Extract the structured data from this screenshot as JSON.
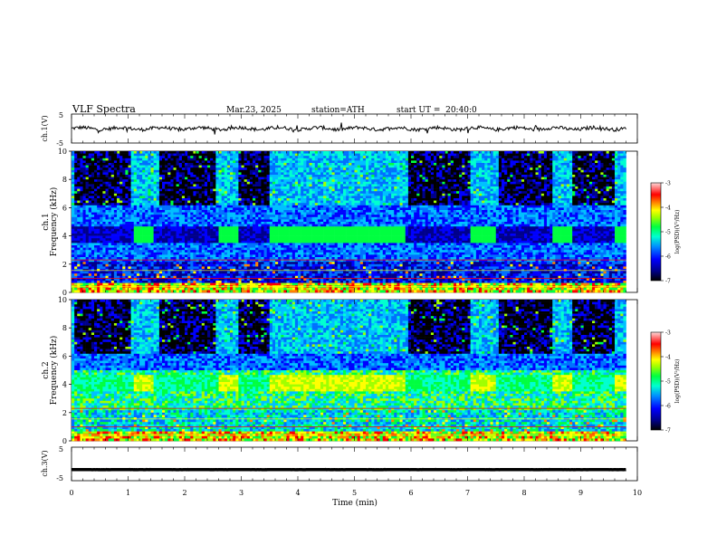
{
  "header": {
    "title": "VLF Spectra",
    "date": "Mar.23, 2025",
    "station": "station=ATH",
    "start": "start UT =  20:40:0"
  },
  "colorbar_label": "log(PSD)(V²/Hz)",
  "colorbar_ticks": [
    "-3",
    "-4",
    "-5",
    "-6",
    "-7"
  ],
  "palette": [
    "#000000",
    "#00008b",
    "#0000ff",
    "#0070ff",
    "#00c0ff",
    "#00ffd0",
    "#00ff40",
    "#a0ff00",
    "#ffff00",
    "#ff8000",
    "#ff0000",
    "#ffc0c0"
  ],
  "chart_data": [
    {
      "type": "line",
      "name": "ch.1 waveform",
      "ylabel": "ch.1(V)",
      "ylim": [
        -5,
        5
      ],
      "yticks": [
        "5",
        "-5"
      ],
      "xlim": [
        0,
        10
      ],
      "mean_level": 0,
      "approx_range": [
        -1.5,
        1.2
      ]
    },
    {
      "type": "heatmap",
      "name": "ch.1 spectrogram",
      "channel_label": "ch.1",
      "ylabel": "Frequency (kHz)",
      "ylim": [
        0,
        10
      ],
      "yticks": [
        "0",
        "2",
        "4",
        "6",
        "8",
        "10"
      ],
      "xlim": [
        0,
        10
      ],
      "zlabel": "log(PSD)(V²/Hz)",
      "zlim": [
        -7,
        -3
      ],
      "dark_intervals_min": [
        [
          0.05,
          1.05
        ],
        [
          1.55,
          2.55
        ],
        [
          2.95,
          3.5
        ],
        [
          5.95,
          7.05
        ],
        [
          7.55,
          8.5
        ],
        [
          8.85,
          9.6
        ]
      ],
      "band_4khz_bright_min": [
        [
          1.1,
          1.45
        ],
        [
          2.6,
          2.95
        ],
        [
          3.5,
          5.9
        ],
        [
          7.05,
          7.5
        ],
        [
          8.5,
          8.85
        ],
        [
          9.6,
          9.8
        ]
      ]
    },
    {
      "type": "heatmap",
      "name": "ch.2 spectrogram",
      "channel_label": "ch.2",
      "ylabel": "Frequency (kHz)",
      "ylim": [
        0,
        10
      ],
      "yticks": [
        "0",
        "2",
        "4",
        "6",
        "8",
        "10"
      ],
      "xlim": [
        0,
        10
      ],
      "zlabel": "log(PSD)(V²/Hz)",
      "zlim": [
        -7,
        -3
      ],
      "dark_intervals_min": [
        [
          0.05,
          1.05
        ],
        [
          1.55,
          2.55
        ],
        [
          2.95,
          3.5
        ],
        [
          5.95,
          7.05
        ],
        [
          7.55,
          8.5
        ],
        [
          8.85,
          9.6
        ]
      ],
      "band_4khz_bright_min": [
        [
          1.1,
          1.45
        ],
        [
          2.6,
          2.95
        ],
        [
          3.5,
          5.9
        ],
        [
          7.05,
          7.5
        ],
        [
          8.5,
          8.85
        ],
        [
          9.6,
          9.8
        ]
      ]
    },
    {
      "type": "line",
      "name": "ch.3 waveform",
      "ylabel": "ch.3(V)",
      "ylim": [
        -5,
        5
      ],
      "yticks": [
        "5",
        "-5"
      ],
      "xlim": [
        0,
        10
      ],
      "mean_level": -1.7,
      "approx_range": [
        -1.9,
        -1.5
      ]
    }
  ],
  "time_axis": {
    "label": "Time (min)",
    "ticks": [
      "0",
      "1",
      "2",
      "3",
      "4",
      "5",
      "6",
      "7",
      "8",
      "9",
      "10"
    ],
    "data_end_min": 9.8
  }
}
